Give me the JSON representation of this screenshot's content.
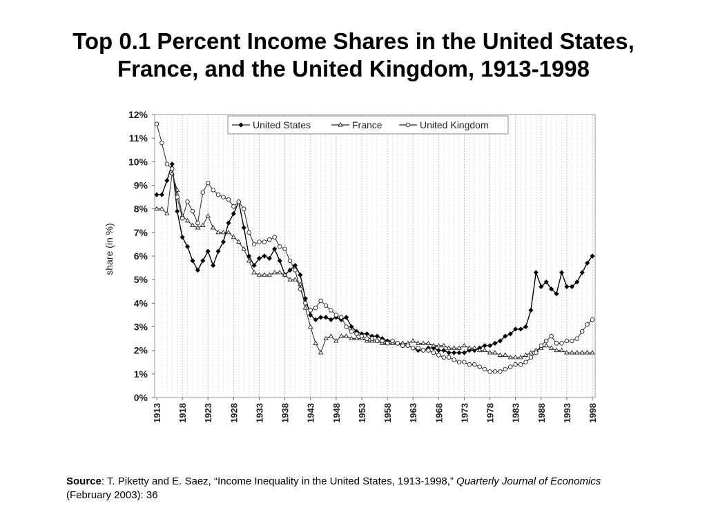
{
  "slide": {
    "title_line1": "Top 0.1 Percent Income Shares in the United States,",
    "title_line2": "France, and the United Kingdom, 1913-1998"
  },
  "source": {
    "label": "Source",
    "text1": ": T. Piketty and E. Saez, “Income Inequality in the United States, 1913-1998,” ",
    "journal": "Quarterly Journal of Economics",
    "text2": " (February 2003): 36"
  },
  "chart_data": {
    "type": "line",
    "title": "",
    "ylabel": "share (in %)",
    "xlabel": "",
    "xlim": [
      1913,
      1998
    ],
    "ylim": [
      0,
      12
    ],
    "grid": "vertical dashed",
    "legend_position": "top",
    "x_ticks": [
      1913,
      1918,
      1923,
      1928,
      1933,
      1938,
      1943,
      1948,
      1953,
      1958,
      1963,
      1968,
      1973,
      1978,
      1983,
      1988,
      1993,
      1998
    ],
    "y_ticks": [
      "0%",
      "1%",
      "2%",
      "3%",
      "4%",
      "5%",
      "6%",
      "7%",
      "8%",
      "9%",
      "10%",
      "11%",
      "12%"
    ],
    "series": [
      {
        "name": "United States",
        "marker": "filled-diamond",
        "x": [
          1913,
          1914,
          1915,
          1916,
          1917,
          1918,
          1919,
          1920,
          1921,
          1922,
          1923,
          1924,
          1925,
          1926,
          1927,
          1928,
          1929,
          1930,
          1931,
          1932,
          1933,
          1934,
          1935,
          1936,
          1937,
          1938,
          1939,
          1940,
          1941,
          1942,
          1943,
          1944,
          1945,
          1946,
          1947,
          1948,
          1949,
          1950,
          1951,
          1952,
          1953,
          1954,
          1955,
          1956,
          1957,
          1958,
          1959,
          1960,
          1961,
          1962,
          1963,
          1964,
          1965,
          1966,
          1967,
          1968,
          1969,
          1970,
          1971,
          1972,
          1973,
          1974,
          1975,
          1976,
          1977,
          1978,
          1979,
          1980,
          1981,
          1982,
          1983,
          1984,
          1985,
          1986,
          1987,
          1988,
          1989,
          1990,
          1991,
          1992,
          1993,
          1994,
          1995,
          1996,
          1997,
          1998
        ],
        "values": [
          8.6,
          8.6,
          9.2,
          9.9,
          7.9,
          6.8,
          6.4,
          5.8,
          5.4,
          5.8,
          6.2,
          5.6,
          6.2,
          6.6,
          7.4,
          7.8,
          8.3,
          7.2,
          6.0,
          5.6,
          5.9,
          6.0,
          5.9,
          6.3,
          5.8,
          5.2,
          5.4,
          5.6,
          5.2,
          4.2,
          3.5,
          3.3,
          3.4,
          3.4,
          3.3,
          3.4,
          3.3,
          3.4,
          3.0,
          2.8,
          2.7,
          2.7,
          2.6,
          2.6,
          2.5,
          2.4,
          2.4,
          2.3,
          2.2,
          2.2,
          2.1,
          2.0,
          2.0,
          2.1,
          2.1,
          2.0,
          2.0,
          1.9,
          1.9,
          1.9,
          1.9,
          2.0,
          2.0,
          2.1,
          2.2,
          2.2,
          2.3,
          2.4,
          2.6,
          2.7,
          2.9,
          2.9,
          3.0,
          3.7,
          5.3,
          4.7,
          4.9,
          4.6,
          4.4,
          5.3,
          4.7,
          4.7,
          4.9,
          5.3,
          5.7,
          6.0
        ]
      },
      {
        "name": "France",
        "marker": "triangle",
        "x": [
          1913,
          1914,
          1915,
          1916,
          1917,
          1918,
          1919,
          1920,
          1921,
          1922,
          1923,
          1924,
          1925,
          1926,
          1927,
          1928,
          1929,
          1930,
          1931,
          1932,
          1933,
          1934,
          1935,
          1936,
          1937,
          1938,
          1939,
          1940,
          1941,
          1942,
          1943,
          1944,
          1945,
          1946,
          1947,
          1948,
          1949,
          1950,
          1951,
          1952,
          1953,
          1954,
          1955,
          1956,
          1957,
          1958,
          1959,
          1960,
          1961,
          1962,
          1963,
          1964,
          1965,
          1966,
          1967,
          1968,
          1969,
          1970,
          1971,
          1972,
          1973,
          1974,
          1975,
          1976,
          1977,
          1978,
          1979,
          1980,
          1981,
          1982,
          1983,
          1984,
          1985,
          1986,
          1987,
          1988,
          1989,
          1990,
          1991,
          1992,
          1993,
          1994,
          1995,
          1996,
          1997,
          1998
        ],
        "values": [
          8.0,
          8.0,
          7.8,
          9.5,
          8.8,
          7.7,
          7.5,
          7.3,
          7.2,
          7.3,
          7.7,
          7.2,
          7.0,
          7.0,
          7.0,
          6.8,
          6.6,
          6.3,
          5.8,
          5.3,
          5.2,
          5.2,
          5.2,
          5.3,
          5.3,
          5.2,
          5.0,
          5.0,
          4.8,
          3.8,
          3.0,
          2.3,
          1.9,
          2.5,
          2.6,
          2.4,
          2.6,
          2.6,
          2.5,
          2.5,
          2.5,
          2.4,
          2.4,
          2.4,
          2.3,
          2.3,
          2.3,
          2.3,
          2.3,
          2.3,
          2.4,
          2.3,
          2.3,
          2.3,
          2.2,
          2.2,
          2.2,
          2.1,
          2.1,
          2.1,
          2.2,
          2.1,
          2.1,
          2.0,
          2.0,
          1.9,
          1.9,
          1.8,
          1.8,
          1.7,
          1.7,
          1.7,
          1.8,
          1.9,
          2.0,
          2.1,
          2.2,
          2.1,
          2.0,
          2.0,
          1.9,
          1.9,
          1.9,
          1.9,
          1.9,
          1.9
        ]
      },
      {
        "name": "United Kingdom",
        "marker": "hollow-circle",
        "x": [
          1913,
          1914,
          1915,
          1916,
          1917,
          1918,
          1919,
          1920,
          1921,
          1922,
          1923,
          1924,
          1925,
          1926,
          1927,
          1928,
          1929,
          1930,
          1931,
          1932,
          1933,
          1934,
          1935,
          1936,
          1937,
          1938,
          1939,
          1940,
          1941,
          1942,
          1943,
          1944,
          1945,
          1946,
          1947,
          1948,
          1949,
          1950,
          1951,
          1952,
          1953,
          1954,
          1955,
          1956,
          1957,
          1958,
          1959,
          1960,
          1961,
          1962,
          1963,
          1964,
          1965,
          1966,
          1967,
          1968,
          1969,
          1970,
          1971,
          1972,
          1973,
          1974,
          1975,
          1976,
          1977,
          1978,
          1979,
          1980,
          1981,
          1982,
          1983,
          1984,
          1985,
          1986,
          1987,
          1988,
          1989,
          1990,
          1991,
          1992,
          1993,
          1994,
          1995,
          1996,
          1997,
          1998
        ],
        "values": [
          11.6,
          10.8,
          9.9,
          9.7,
          8.5,
          7.6,
          8.3,
          7.9,
          7.4,
          8.7,
          9.1,
          8.8,
          8.6,
          8.5,
          8.4,
          8.1,
          8.3,
          8.0,
          7.0,
          6.5,
          6.6,
          6.6,
          6.7,
          6.8,
          6.4,
          6.3,
          5.8,
          5.4,
          4.6,
          4.0,
          3.7,
          3.8,
          4.1,
          3.9,
          3.7,
          3.5,
          3.4,
          3.0,
          2.8,
          2.7,
          2.6,
          2.5,
          2.5,
          2.4,
          2.4,
          2.3,
          2.4,
          2.3,
          2.2,
          2.2,
          2.1,
          2.1,
          2.0,
          2.0,
          1.9,
          1.8,
          1.7,
          1.7,
          1.6,
          1.5,
          1.5,
          1.4,
          1.4,
          1.3,
          1.2,
          1.1,
          1.1,
          1.1,
          1.2,
          1.3,
          1.4,
          1.4,
          1.5,
          1.7,
          1.9,
          2.2,
          2.4,
          2.6,
          2.3,
          2.3,
          2.4,
          2.4,
          2.5,
          2.8,
          3.1,
          3.3
        ]
      }
    ]
  }
}
